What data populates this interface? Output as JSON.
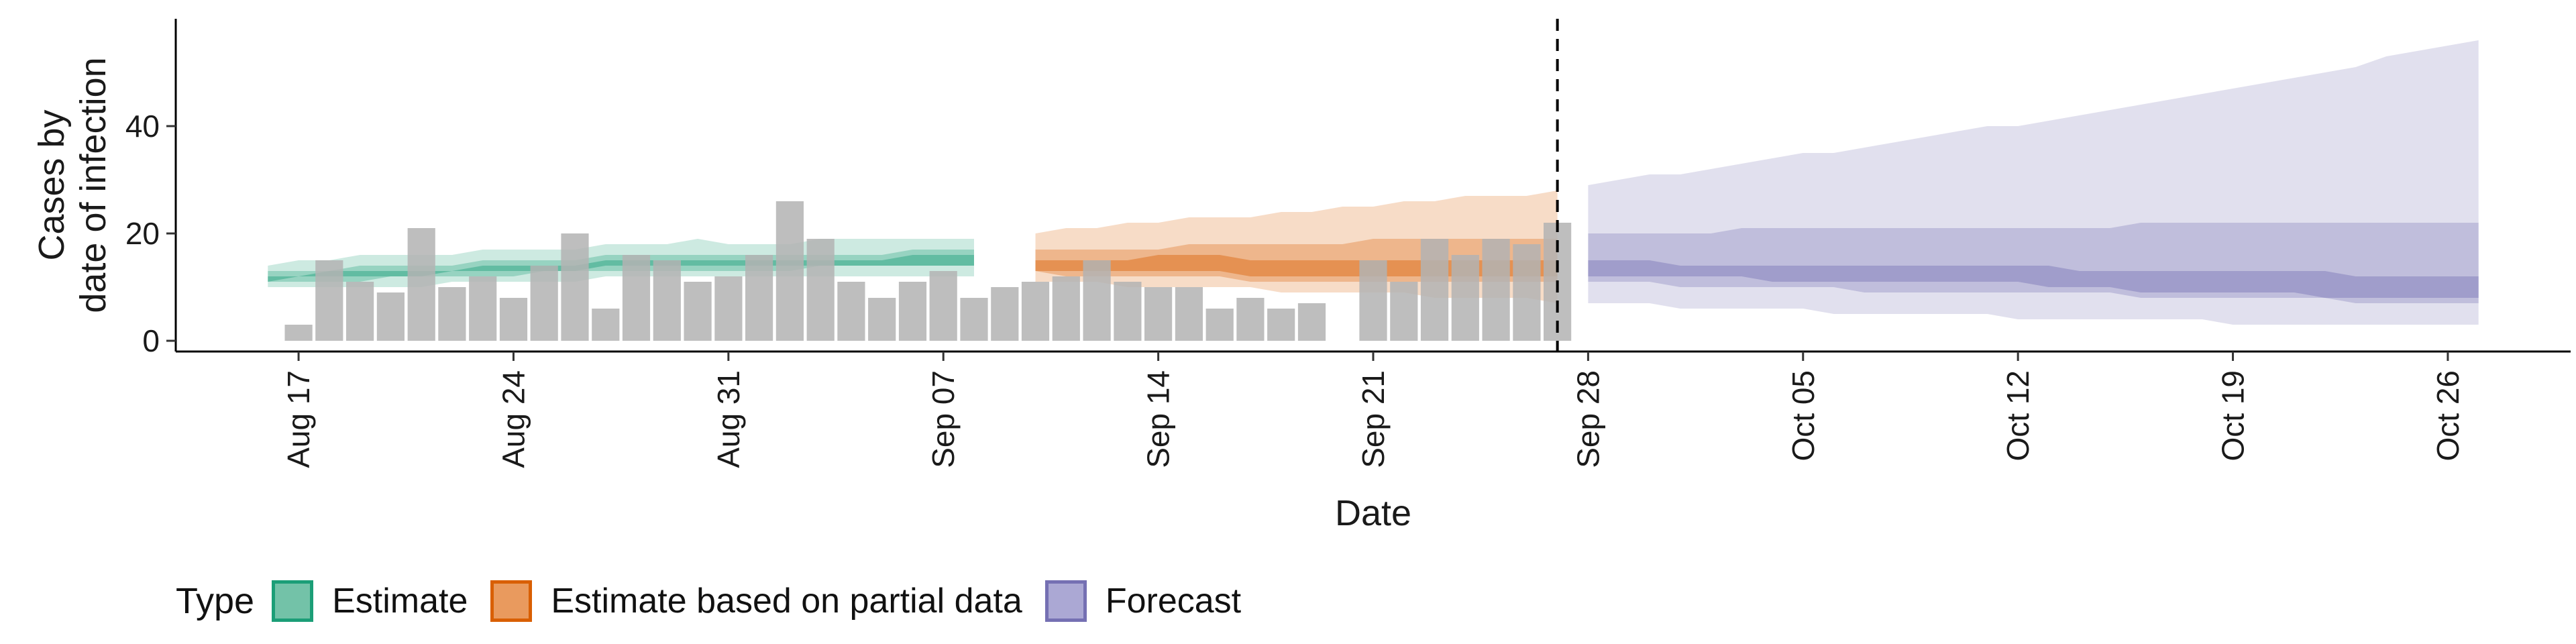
{
  "chart_data": {
    "type": "bar",
    "ylabel_lines": [
      "Cases by",
      "date of infection"
    ],
    "xlabel": "Date",
    "y_ticks": [
      0,
      20,
      40
    ],
    "ylim": [
      -2,
      60
    ],
    "x_range": [
      "2020-08-13",
      "2020-10-30"
    ],
    "x_ticks": [
      {
        "date": "2020-08-17",
        "label": "Aug 17"
      },
      {
        "date": "2020-08-24",
        "label": "Aug 24"
      },
      {
        "date": "2020-08-31",
        "label": "Aug 31"
      },
      {
        "date": "2020-09-07",
        "label": "Sep 07"
      },
      {
        "date": "2020-09-14",
        "label": "Sep 14"
      },
      {
        "date": "2020-09-21",
        "label": "Sep 21"
      },
      {
        "date": "2020-09-28",
        "label": "Sep 28"
      },
      {
        "date": "2020-10-05",
        "label": "Oct 05"
      },
      {
        "date": "2020-10-12",
        "label": "Oct 12"
      },
      {
        "date": "2020-10-19",
        "label": "Oct 19"
      },
      {
        "date": "2020-10-26",
        "label": "Oct 26"
      }
    ],
    "vline_date": "2020-09-27",
    "bars": {
      "color": "#b3b3b3",
      "dates": [
        "2020-08-17",
        "2020-08-18",
        "2020-08-19",
        "2020-08-20",
        "2020-08-21",
        "2020-08-22",
        "2020-08-23",
        "2020-08-24",
        "2020-08-25",
        "2020-08-26",
        "2020-08-27",
        "2020-08-28",
        "2020-08-29",
        "2020-08-30",
        "2020-08-31",
        "2020-09-01",
        "2020-09-02",
        "2020-09-03",
        "2020-09-04",
        "2020-09-05",
        "2020-09-06",
        "2020-09-07",
        "2020-09-08",
        "2020-09-09",
        "2020-09-10",
        "2020-09-11",
        "2020-09-12",
        "2020-09-13",
        "2020-09-14",
        "2020-09-15",
        "2020-09-16",
        "2020-09-17",
        "2020-09-18",
        "2020-09-19",
        "2020-09-20",
        "2020-09-21",
        "2020-09-22",
        "2020-09-23",
        "2020-09-24",
        "2020-09-25",
        "2020-09-26",
        "2020-09-27"
      ],
      "values": [
        3,
        15,
        11,
        9,
        21,
        10,
        12,
        8,
        14,
        20,
        6,
        16,
        15,
        11,
        12,
        16,
        26,
        19,
        11,
        8,
        11,
        13,
        8,
        10,
        11,
        12,
        15,
        11,
        10,
        10,
        6,
        8,
        6,
        7,
        0,
        15,
        11,
        19,
        16,
        19,
        18,
        22
      ]
    },
    "series": [
      {
        "name": "Estimate",
        "color": "#1b9e77",
        "start": "2020-08-16",
        "outer_lo": [
          10,
          10,
          10,
          10,
          10,
          10,
          11,
          11,
          11,
          11,
          11,
          12,
          12,
          12,
          12,
          12,
          12,
          12,
          12,
          12,
          12,
          12,
          12,
          12
        ],
        "outer_hi": [
          14,
          15,
          15,
          16,
          16,
          16,
          16,
          17,
          17,
          17,
          17,
          18,
          18,
          18,
          19,
          18,
          18,
          18,
          19,
          19,
          19,
          19,
          19,
          19
        ],
        "mid_lo": [
          11,
          11,
          11,
          11,
          12,
          12,
          12,
          12,
          12,
          13,
          13,
          13,
          13,
          13,
          13,
          13,
          13,
          13,
          14,
          14,
          14,
          14,
          14,
          14
        ],
        "mid_hi": [
          13,
          13,
          13,
          14,
          14,
          14,
          14,
          15,
          15,
          15,
          15,
          16,
          16,
          16,
          16,
          16,
          16,
          16,
          16,
          16,
          16,
          17,
          17,
          17
        ],
        "inner_lo": [
          11,
          12,
          12,
          12,
          12,
          12,
          13,
          13,
          13,
          13,
          13,
          14,
          14,
          14,
          14,
          14,
          14,
          14,
          14,
          14,
          14,
          14,
          14,
          14
        ],
        "inner_hi": [
          12,
          12,
          13,
          13,
          13,
          13,
          13,
          14,
          14,
          14,
          14,
          15,
          15,
          15,
          15,
          15,
          15,
          15,
          15,
          15,
          15,
          16,
          16,
          16
        ]
      },
      {
        "name": "Estimate based on partial data",
        "color": "#d95f02",
        "start": "2020-09-10",
        "outer_lo": [
          11,
          11,
          11,
          10,
          10,
          10,
          10,
          10,
          9,
          9,
          9,
          9,
          9,
          8,
          8,
          8,
          8,
          7
        ],
        "outer_hi": [
          20,
          21,
          21,
          22,
          22,
          23,
          23,
          23,
          24,
          24,
          25,
          25,
          26,
          26,
          27,
          27,
          27,
          28
        ],
        "mid_lo": [
          13,
          12,
          12,
          12,
          12,
          12,
          12,
          11,
          11,
          11,
          11,
          11,
          11,
          11,
          11,
          11,
          11,
          11
        ],
        "mid_hi": [
          17,
          17,
          17,
          17,
          17,
          18,
          18,
          18,
          18,
          18,
          18,
          19,
          19,
          19,
          19,
          19,
          19,
          19
        ],
        "inner_lo": [
          13,
          13,
          13,
          13,
          13,
          13,
          13,
          12,
          12,
          12,
          12,
          12,
          12,
          12,
          12,
          12,
          12,
          12
        ],
        "inner_hi": [
          15,
          15,
          15,
          15,
          16,
          16,
          16,
          15,
          15,
          15,
          15,
          15,
          15,
          15,
          15,
          15,
          15,
          15
        ]
      },
      {
        "name": "Forecast",
        "color": "#7570b3",
        "start": "2020-09-28",
        "outer_lo": [
          7,
          7,
          7,
          6,
          6,
          6,
          6,
          6,
          5,
          5,
          5,
          5,
          5,
          5,
          4,
          4,
          4,
          4,
          4,
          4,
          4,
          3,
          3,
          3,
          3,
          3,
          3,
          3,
          3,
          3
        ],
        "outer_hi": [
          29,
          30,
          31,
          31,
          32,
          33,
          34,
          35,
          35,
          36,
          37,
          38,
          39,
          40,
          40,
          41,
          42,
          43,
          44,
          45,
          46,
          47,
          48,
          49,
          50,
          51,
          53,
          54,
          55,
          56
        ],
        "mid_lo": [
          11,
          11,
          11,
          10,
          10,
          10,
          10,
          10,
          10,
          9,
          9,
          9,
          9,
          9,
          9,
          9,
          9,
          9,
          8,
          8,
          8,
          8,
          8,
          8,
          8,
          7,
          7,
          7,
          7,
          7
        ],
        "mid_hi": [
          20,
          20,
          20,
          20,
          20,
          21,
          21,
          21,
          21,
          21,
          21,
          21,
          21,
          21,
          21,
          21,
          21,
          21,
          22,
          22,
          22,
          22,
          22,
          22,
          22,
          22,
          22,
          22,
          22,
          22
        ],
        "inner_lo": [
          12,
          12,
          12,
          12,
          12,
          12,
          11,
          11,
          11,
          11,
          11,
          11,
          11,
          11,
          11,
          10,
          10,
          10,
          9,
          9,
          9,
          9,
          9,
          9,
          8,
          8,
          8,
          8,
          8,
          8
        ],
        "inner_hi": [
          15,
          15,
          15,
          14,
          14,
          14,
          14,
          14,
          14,
          14,
          14,
          14,
          14,
          14,
          14,
          14,
          13,
          13,
          13,
          13,
          13,
          13,
          13,
          13,
          13,
          12,
          12,
          12,
          12,
          12
        ]
      }
    ],
    "legend": {
      "title": "Type",
      "position": "bottom",
      "items": [
        {
          "label": "Estimate",
          "fill": "#73c2a8",
          "border": "#1b9e77"
        },
        {
          "label": "Estimate based on partial data",
          "fill": "#e99a5e",
          "border": "#d95f02"
        },
        {
          "label": "Forecast",
          "fill": "#aba8d4",
          "border": "#7570b3"
        }
      ]
    }
  }
}
